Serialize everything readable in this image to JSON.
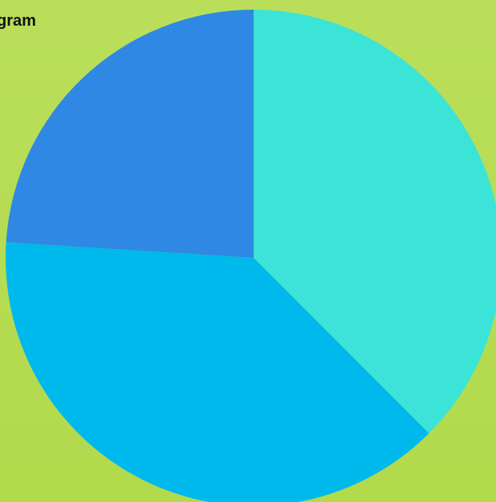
{
  "chart_data": {
    "type": "pie",
    "title": "gram",
    "start_angle_deg": 0,
    "direction": "clockwise",
    "slices": [
      {
        "label": "",
        "value": 37.5,
        "color": "#3be4d6"
      },
      {
        "label": "",
        "value": 38.5,
        "color": "#00b9ec"
      },
      {
        "label": "",
        "value": 24.0,
        "color": "#2f88e3"
      }
    ]
  }
}
